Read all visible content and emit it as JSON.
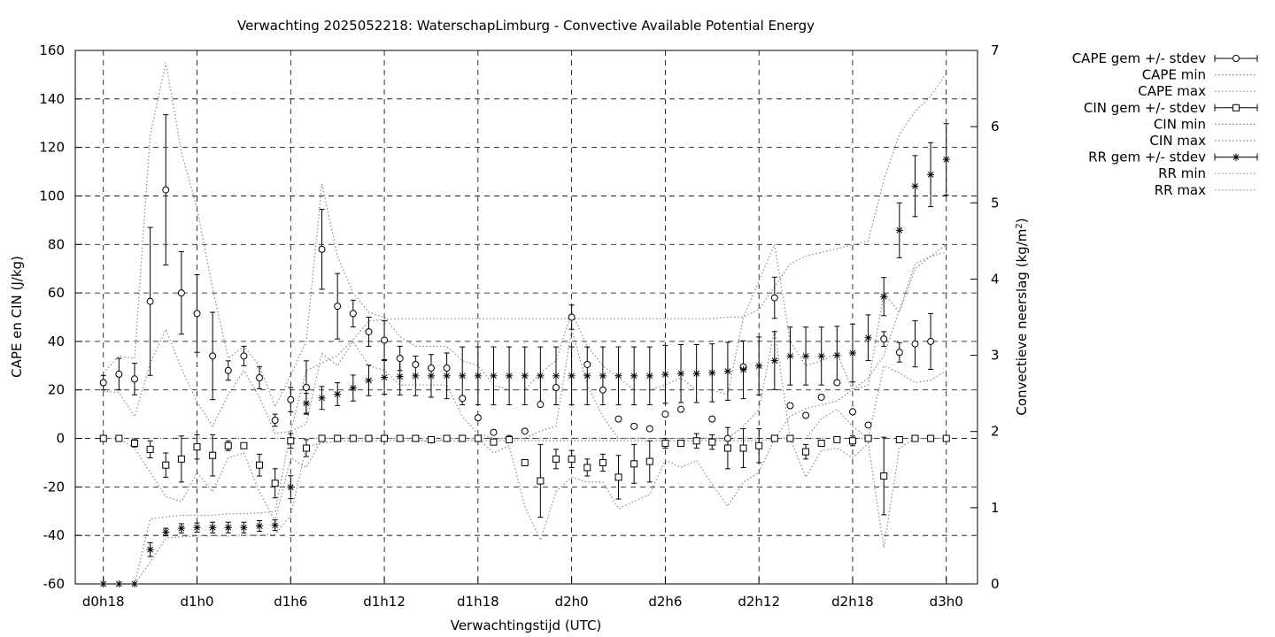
{
  "chart_data": {
    "type": "line",
    "title": "Verwachting 2025052218: WaterschapLimburg - Convective Available Potential Energy",
    "xlabel": "Verwachtingstijd (UTC)",
    "ylabel": "CAPE en CIN (J/kg)",
    "y2label_main": "Convectieve neerslag (kg/m",
    "y2label_sup": "2",
    "y2label_end": ")",
    "x_tick_labels": [
      "d0h18",
      "d1h0",
      "d1h6",
      "d1h12",
      "d1h18",
      "d2h0",
      "d2h6",
      "d2h12",
      "d2h18",
      "d3h0"
    ],
    "x_hours": [
      18,
      19,
      20,
      21,
      22,
      23,
      24,
      25,
      26,
      27,
      28,
      29,
      30,
      31,
      32,
      33,
      34,
      35,
      36,
      37,
      38,
      39,
      40,
      41,
      42,
      43,
      44,
      45,
      46,
      47,
      48,
      49,
      50,
      51,
      52,
      53,
      54,
      55,
      56,
      57,
      58,
      59,
      60,
      61,
      62,
      63,
      64,
      65,
      66,
      67,
      68,
      69,
      70,
      71,
      72
    ],
    "x_tick_hours": [
      18,
      24,
      30,
      36,
      42,
      48,
      54,
      60,
      66,
      72
    ],
    "xlim": [
      16.2,
      74.0
    ],
    "ylim": [
      -60,
      160
    ],
    "y_ticks": [
      -60,
      -40,
      -20,
      0,
      20,
      40,
      60,
      80,
      100,
      120,
      140,
      160
    ],
    "y2lim": [
      0,
      7
    ],
    "y2_ticks": [
      0,
      1,
      2,
      3,
      4,
      5,
      6,
      7
    ],
    "grid": true,
    "legend_position": "outside-right",
    "series": [
      {
        "name": "CAPE gem +/- stdev",
        "marker": "circle",
        "axis": "y1",
        "mean": [
          23,
          26.5,
          24.5,
          56.5,
          102.5,
          60,
          51.5,
          34,
          28,
          34,
          25,
          7.5,
          16,
          21,
          78,
          54.5,
          51.5,
          44,
          40.5,
          33,
          30.5,
          29,
          29,
          16.5,
          8.5,
          2.5,
          0,
          3,
          14,
          21,
          50,
          30.5,
          20,
          8,
          5,
          4,
          10,
          12,
          null,
          8,
          0,
          29.5,
          null,
          58,
          13.5,
          9.5,
          17,
          23,
          11,
          5.5,
          41,
          35.5,
          39,
          40,
          null
        ],
        "stdev": [
          3,
          6.5,
          6.5,
          30.5,
          31,
          17,
          16,
          18,
          4,
          4,
          4.5,
          2.5,
          5,
          11,
          16.5,
          13.5,
          5.5,
          6,
          8,
          5,
          null,
          null,
          null,
          null,
          null,
          null,
          null,
          null,
          null,
          null,
          5,
          null,
          null,
          null,
          null,
          null,
          null,
          null,
          null,
          null,
          null,
          null,
          null,
          8.5,
          null,
          null,
          null,
          null,
          null,
          null,
          3,
          4,
          9.5,
          11.5,
          null
        ]
      },
      {
        "name": "CAPE min",
        "axis": "y1",
        "style": "dotted",
        "values": [
          19.5,
          19,
          9,
          31,
          45,
          29,
          15,
          5,
          18,
          28,
          17,
          2,
          3,
          6,
          35,
          30,
          40,
          30,
          28,
          22,
          22,
          22,
          22,
          9,
          2,
          0,
          0,
          0,
          3,
          5,
          45,
          22,
          9,
          0,
          0,
          0,
          0,
          0,
          0,
          0,
          0,
          5,
          12,
          45,
          0,
          0,
          8,
          12,
          5,
          0,
          30,
          27,
          23,
          24,
          28
        ]
      },
      {
        "name": "CAPE max",
        "axis": "y1",
        "style": "dotted",
        "values": [
          27,
          34,
          33,
          125,
          155,
          118,
          95,
          62,
          33,
          38,
          30,
          13,
          26,
          40,
          105,
          75,
          60,
          52,
          50,
          42,
          38,
          38,
          38,
          32,
          30,
          22,
          20,
          20,
          27,
          32,
          52,
          38,
          30,
          25,
          20,
          20,
          22,
          25,
          20,
          20,
          18,
          50,
          65,
          80,
          40,
          30,
          32,
          35,
          20,
          22,
          60,
          52,
          70,
          75,
          80
        ]
      },
      {
        "name": "CIN gem +/- stdev",
        "marker": "square",
        "axis": "y1",
        "mean": [
          0,
          0,
          -2,
          -4.5,
          -11,
          -8.5,
          -3.5,
          -7,
          -3,
          -3,
          -11,
          -18.5,
          -1,
          -4,
          0,
          0,
          0,
          0,
          0,
          0,
          0,
          -0.5,
          0,
          0,
          0,
          -1.5,
          -0.5,
          -10,
          -17.5,
          -8.5,
          -8.5,
          -12,
          -10,
          -16,
          -10.5,
          -9.5,
          -2,
          -2,
          -1,
          -1.5,
          -4,
          -4,
          -3,
          0,
          0,
          -5.5,
          -2,
          -0.5,
          -1,
          0,
          -15.5,
          -0.5,
          0,
          0,
          0
        ],
        "stdev": [
          null,
          null,
          1.5,
          3.5,
          5,
          9.5,
          5,
          8.5,
          2,
          1,
          4.5,
          6,
          3,
          3.5,
          null,
          null,
          null,
          null,
          null,
          null,
          null,
          null,
          null,
          null,
          null,
          null,
          null,
          null,
          15,
          4,
          3.5,
          3.5,
          3.5,
          9,
          8,
          8.5,
          2,
          null,
          3,
          3,
          8.5,
          8,
          7,
          null,
          null,
          3,
          null,
          null,
          2,
          null,
          16,
          null,
          null,
          null,
          null
        ]
      },
      {
        "name": "CIN min",
        "axis": "y1",
        "style": "dotted",
        "values": [
          0,
          0,
          -4,
          -14,
          -24,
          -26,
          -14,
          -22,
          -8,
          -6,
          -22,
          -34,
          -8,
          -12,
          0,
          0,
          0,
          0,
          0,
          0,
          0,
          -2,
          0,
          0,
          0,
          -6,
          -3,
          -28,
          -42,
          -22,
          -16,
          -18,
          -18,
          -29,
          -26,
          -23,
          -9,
          -12,
          -9,
          -19,
          -28,
          -18,
          -14,
          0,
          0,
          -16,
          -5,
          -4,
          -8,
          -2,
          -45,
          -4,
          0,
          0,
          0
        ]
      },
      {
        "name": "CIN max",
        "axis": "y1",
        "style": "dotted",
        "values": [
          0,
          0,
          0,
          0,
          0,
          0,
          0,
          0,
          0,
          0,
          0,
          0,
          0,
          0,
          0,
          0,
          0,
          0,
          0,
          0,
          0,
          0,
          0,
          0,
          0,
          0,
          0,
          0,
          0,
          0,
          0,
          0,
          0,
          0,
          0,
          0,
          0,
          0,
          0,
          0,
          0,
          0,
          0,
          0,
          0,
          0,
          0,
          0,
          0,
          0,
          0,
          0,
          0,
          0,
          0
        ]
      },
      {
        "name": "RR gem +/- stdev",
        "marker": "star",
        "axis": "y2",
        "mean": [
          0,
          0,
          0,
          0.45,
          0.68,
          0.73,
          0.74,
          0.74,
          0.74,
          0.74,
          0.76,
          0.77,
          1.27,
          2.37,
          2.44,
          2.49,
          2.57,
          2.67,
          2.71,
          2.72,
          2.73,
          2.73,
          2.73,
          2.73,
          2.73,
          2.73,
          2.73,
          2.73,
          2.73,
          2.73,
          2.73,
          2.73,
          2.73,
          2.73,
          2.73,
          2.73,
          2.75,
          2.76,
          2.76,
          2.77,
          2.79,
          2.81,
          2.86,
          2.93,
          2.99,
          2.99,
          2.99,
          3.0,
          3.03,
          3.23,
          3.77,
          4.64,
          5.22,
          5.37,
          5.57
        ],
        "stdev": [
          null,
          null,
          null,
          0.09,
          0.05,
          0.06,
          0.06,
          0.07,
          0.07,
          0.07,
          0.07,
          0.07,
          0.15,
          0.13,
          0.15,
          0.15,
          0.17,
          0.2,
          0.22,
          0.24,
          0.26,
          0.28,
          0.3,
          0.38,
          0.38,
          0.38,
          0.38,
          0.38,
          0.38,
          0.38,
          0.38,
          0.38,
          0.38,
          0.38,
          0.38,
          0.38,
          0.38,
          0.38,
          0.38,
          0.38,
          0.38,
          0.38,
          0.38,
          0.38,
          0.38,
          0.38,
          0.38,
          0.38,
          0.38,
          0.3,
          0.25,
          0.36,
          0.4,
          0.42,
          0.47
        ]
      },
      {
        "name": "RR min",
        "axis": "y2",
        "style": "dotted",
        "values": [
          0,
          0,
          0,
          0.28,
          0.6,
          0.62,
          0.63,
          0.63,
          0.63,
          0.64,
          0.64,
          0.65,
          0.9,
          1.8,
          1.85,
          1.87,
          1.88,
          1.88,
          1.88,
          1.88,
          1.88,
          1.88,
          1.88,
          1.88,
          1.88,
          1.88,
          1.88,
          1.88,
          1.88,
          1.88,
          1.88,
          1.88,
          1.88,
          1.88,
          1.88,
          1.88,
          1.88,
          1.88,
          1.88,
          1.88,
          1.88,
          1.88,
          1.88,
          1.9,
          2.2,
          2.3,
          2.35,
          2.4,
          2.55,
          2.7,
          3.0,
          3.6,
          4.2,
          4.3,
          4.35
        ]
      },
      {
        "name": "RR max",
        "axis": "y2",
        "style": "dotted",
        "values": [
          0,
          0,
          0,
          0.85,
          0.88,
          0.9,
          0.9,
          0.9,
          0.92,
          0.92,
          0.93,
          0.95,
          2.0,
          2.8,
          2.9,
          3.0,
          3.2,
          3.45,
          3.47,
          3.48,
          3.48,
          3.48,
          3.48,
          3.48,
          3.48,
          3.48,
          3.48,
          3.48,
          3.48,
          3.48,
          3.48,
          3.48,
          3.48,
          3.48,
          3.48,
          3.48,
          3.48,
          3.48,
          3.48,
          3.48,
          3.5,
          3.5,
          3.6,
          3.9,
          4.2,
          4.3,
          4.35,
          4.4,
          4.45,
          4.5,
          5.3,
          5.9,
          6.2,
          6.4,
          6.7
        ]
      }
    ]
  }
}
